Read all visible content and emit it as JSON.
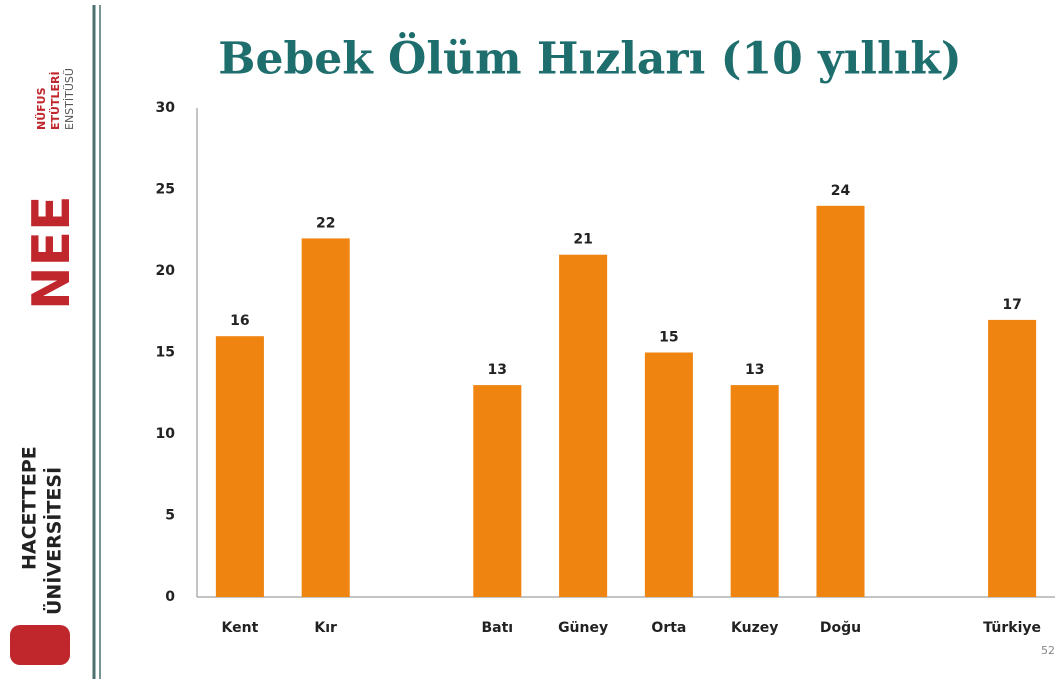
{
  "chart_data": {
    "type": "bar",
    "title": "Bebek Ölüm Hızları (10 yıllık)",
    "categories": [
      "Kent",
      "Kır",
      null,
      "Batı",
      "Güney",
      "Orta",
      "Kuzey",
      "Doğu",
      null,
      "Türkiye"
    ],
    "values": [
      16,
      22,
      null,
      13,
      21,
      15,
      13,
      24,
      null,
      17
    ],
    "color": "#ef8410",
    "ylim": [
      0,
      30
    ],
    "yticks": [
      0,
      5,
      10,
      15,
      20,
      25,
      30
    ],
    "grid": false
  },
  "sidebar": {
    "logo_top_text": [
      "NÜFUS",
      "ETÜTLERİ",
      "ENSTİTÜSÜ"
    ],
    "logo_top_mark": "NEE",
    "logo_bottom_text": [
      "HACETTEPE",
      "ÜNİVERSİTESİ"
    ]
  },
  "page_number": "52"
}
